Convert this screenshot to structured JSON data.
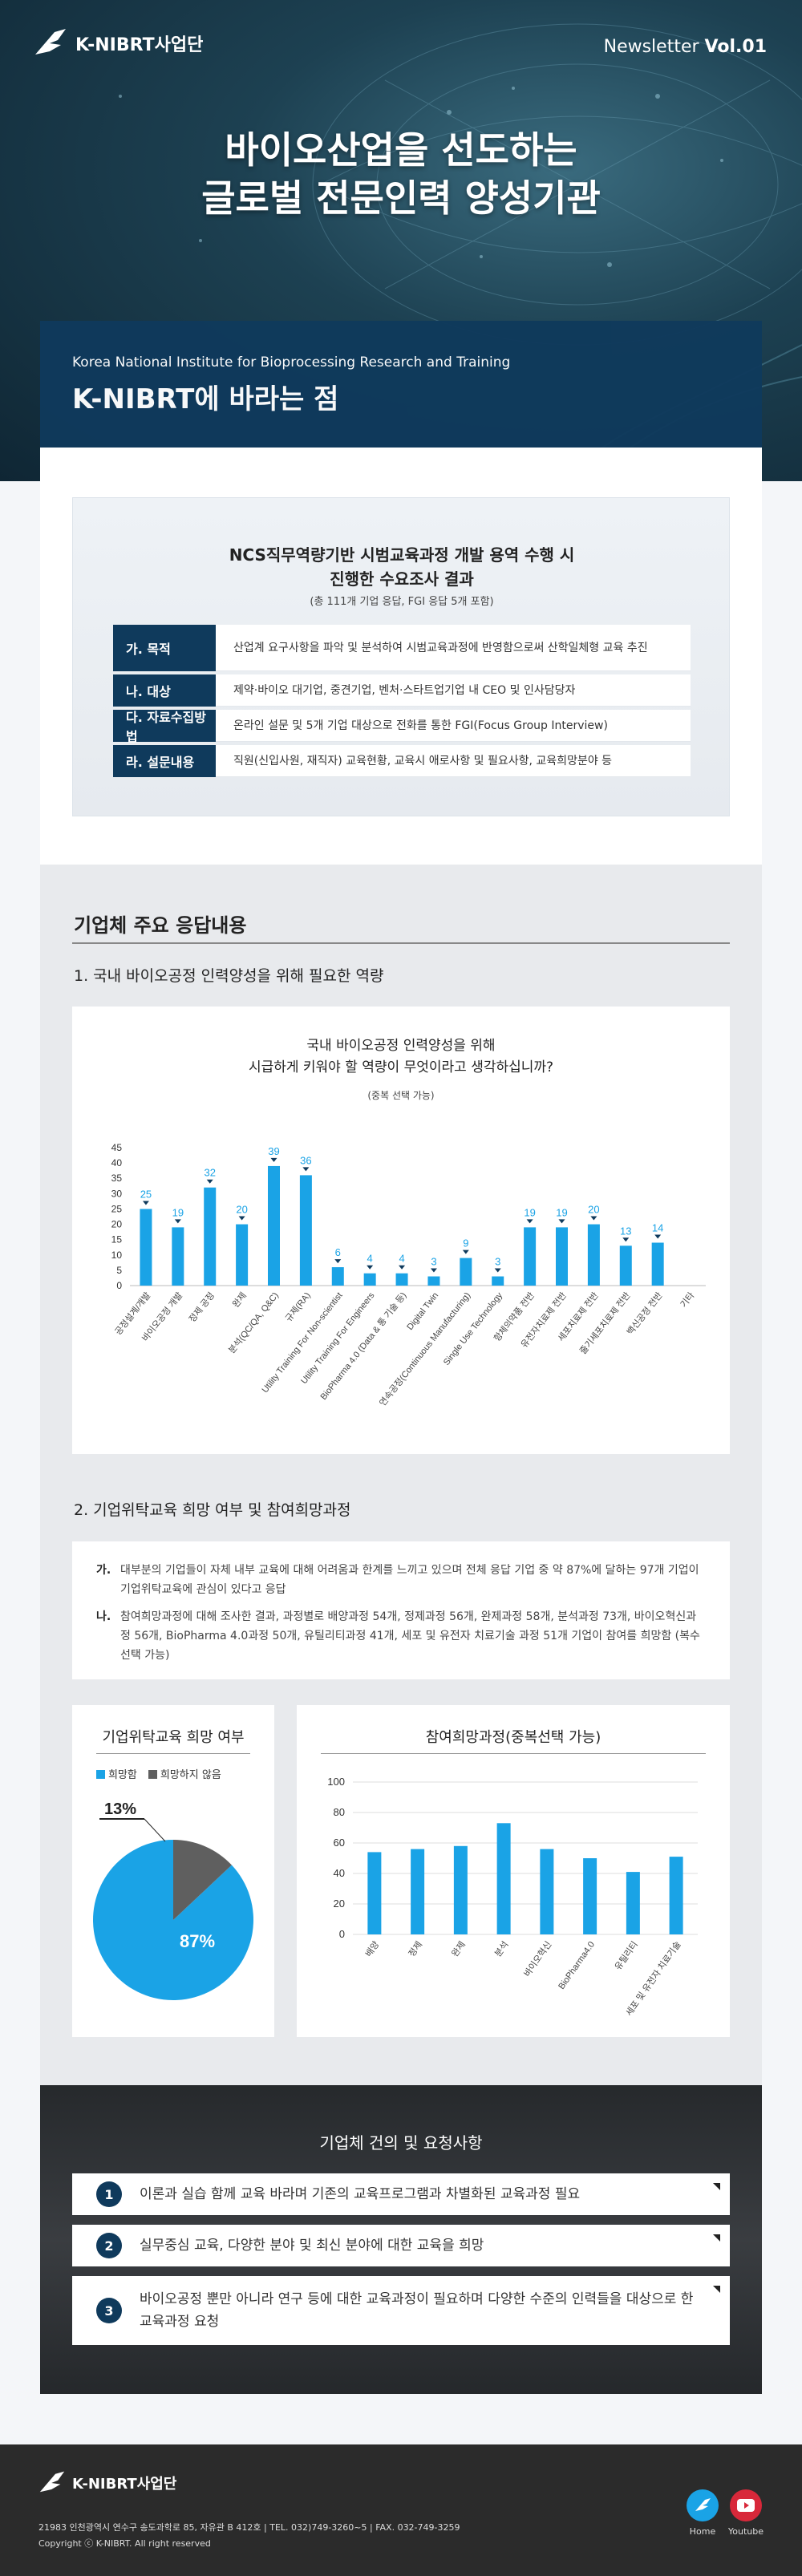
{
  "header": {
    "logo_text": "K-NIBRT사업단",
    "newsletter_label": "Newsletter",
    "newsletter_vol": "Vol.01",
    "title_line1": "바이오산업을 선도하는",
    "title_line2": "글로벌 전문인력 양성기관",
    "banner_sub": "Korea National Institute for Bioprocessing Research and Training",
    "banner_title": "K-NIBRT에 바라는 점"
  },
  "survey": {
    "title_line1": "NCS직무역량기반 시범교육과정 개발 용역 수행 시",
    "title_line2": "진행한 수요조사 결과",
    "note": "(총 111개 기업 응답, FGI 응답 5개 포함)",
    "rows": [
      {
        "label": "가. 목적",
        "value": "산업계 요구사항을 파악 및 분석하여 시범교육과정에 반영함으로써 산학일체형 교육 추진"
      },
      {
        "label": "나. 대상",
        "value": "제약·바이오 대기업, 중견기업, 벤처·스타트업기업 내 CEO 및 인사담당자"
      },
      {
        "label": "다. 자료수집방법",
        "value": "온라인 설문 및 5개 기업 대상으로 전화를 통한 FGI(Focus Group Interview)"
      },
      {
        "label": "라. 설문내용",
        "value": "직원(신입사원, 재직자) 교육현황, 교육시 애로사항 및 필요사항, 교육희망분야 등"
      }
    ]
  },
  "section": {
    "heading": "기업체 주요 응답내용",
    "q1": "1. 국내 바이오공정 인력양성을 위해 필요한 역량",
    "q2": "2. 기업위탁교육 희망 여부 및 참여희망과정"
  },
  "chart1_text": {
    "title_line1": "국내 바이오공정 인력양성을 위해",
    "title_line2": "시급하게 키워야 할 역량이 무엇이라고 생각하십니까?",
    "note": "(중복 선택 가능)"
  },
  "q2_text": [
    {
      "marker": "가.",
      "text": "대부분의 기업들이 자체 내부 교육에 대해 어려움과 한계를 느끼고 있으며 전체 응답 기업 중 약 87%에 달하는 97개 기업이 기업위탁교육에 관심이 있다고 응답"
    },
    {
      "marker": "나.",
      "text": "참여희망과정에 대해 조사한 결과, 과정별로 배양과정 54개, 정제과정 56개, 완제과정 58개, 분석과정 73개, 바이오혁신과정 56개, BioPharma 4.0과정 50개, 유틸리티과정 41개, 세포 및 유전자 치료기술 과정 51개 기업이 참여를 희망함 (복수선택 가능)"
    }
  ],
  "pie_text": {
    "title": "기업위탁교육 희망 여부",
    "legend_yes": "희망함",
    "legend_no": "희망하지 않음"
  },
  "bar2_text": {
    "title": "참여희망과정(중복선택 가능)"
  },
  "chart_data": [
    {
      "type": "bar",
      "categories": [
        "공정설계/개발",
        "바이오공정 개발",
        "정제 공정",
        "완제",
        "분석(QC/QA, Q&C)",
        "규제(RA)",
        "Utility Training For Non-scientist",
        "Utility Training For Engineers",
        "BioPharma 4.0 (Data & 통 기술 등)",
        "Digital Twin",
        "연속공정(Continuous Manufacturing)",
        "Single Use Technology",
        "항체의약품 전반",
        "유전자치료제 전반",
        "세포치료제 전반",
        "줄기세포치료제 전반",
        "백신공정 전반",
        "기타"
      ],
      "values": [
        25,
        19,
        32,
        20,
        39,
        36,
        6,
        4,
        4,
        3,
        9,
        3,
        19,
        19,
        20,
        13,
        14,
        0
      ],
      "yticks": [
        0,
        5,
        10,
        15,
        20,
        25,
        30,
        35,
        40,
        45
      ],
      "ylim": [
        0,
        45
      ],
      "color": "#1aa3e6"
    },
    {
      "type": "pie",
      "labels": [
        "희망함",
        "희망하지 않음"
      ],
      "values": [
        87,
        13
      ],
      "colors": [
        "#1aa3e6",
        "#5f5f5f"
      ]
    },
    {
      "type": "bar",
      "categories": [
        "배양",
        "정제",
        "완제",
        "분석",
        "바이오혁신",
        "BioPharma4.0",
        "유틸리티",
        "세포 및 유전자 치료기술"
      ],
      "values": [
        54,
        56,
        58,
        73,
        56,
        50,
        41,
        51
      ],
      "yticks": [
        0,
        20,
        40,
        60,
        80,
        100
      ],
      "ylim": [
        0,
        100
      ],
      "color": "#1aa3e6"
    }
  ],
  "requests": {
    "title": "기업체 건의 및 요청사항",
    "items": [
      {
        "num": "1",
        "text": "이론과 실습 함께 교육 바라며 기존의 교육프로그램과 차별화된 교육과정 필요"
      },
      {
        "num": "2",
        "text": "실무중심 교육, 다양한 분야 및 최신 분야에 대한 교육을 희망"
      },
      {
        "num": "3",
        "text": "바이오공정 뿐만 아니라 연구 등에 대한 교육과정이 필요하며 다양한 수준의 인력들을 대상으로 한 교육과정 요청"
      }
    ]
  },
  "footer": {
    "logo_text": "K-NIBRT사업단",
    "address": "21983 인천광역시 연수구 송도과학로 85, 자유관 B 412호 | TEL. 032)749-3260~5 | FAX. 032-749-3259",
    "copyright": "Copyright ⓒ K-NIBRT. All right reserved",
    "home_label": "Home",
    "youtube_label": "Youtube"
  }
}
